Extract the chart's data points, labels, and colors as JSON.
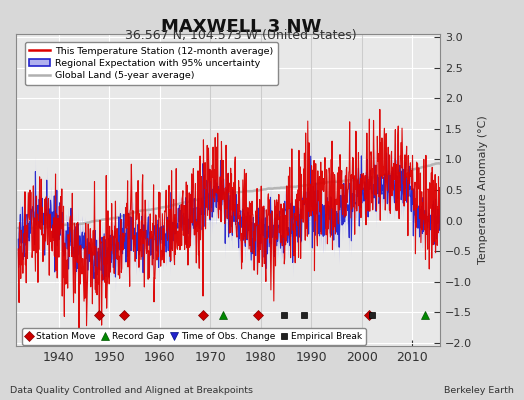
{
  "title": "MAXWELL 3 NW",
  "subtitle": "36.567 N, 104.573 W (United States)",
  "ylabel": "Temperature Anomaly (°C)",
  "xlabel_bottom": "Data Quality Controlled and Aligned at Breakpoints",
  "xlabel_right": "Berkeley Earth",
  "ylim": [
    -2.05,
    3.05
  ],
  "xlim": [
    1931.5,
    2015.5
  ],
  "yticks": [
    -2,
    -1.5,
    -1,
    -0.5,
    0,
    0.5,
    1,
    1.5,
    2,
    2.5,
    3
  ],
  "xticks": [
    1940,
    1950,
    1960,
    1970,
    1980,
    1990,
    2000,
    2010
  ],
  "bg_color": "#d8d8d8",
  "plot_bg_color": "#e8e8e8",
  "grid_color": "#ffffff",
  "station_color": "#dd0000",
  "regional_color": "#2222cc",
  "regional_fill_color": "#b0b0ee",
  "global_color": "#b0b0b0",
  "marker_station_move_color": "#cc0000",
  "marker_record_gap_color": "#008800",
  "marker_obs_change_color": "#2222cc",
  "marker_empirical_color": "#222222",
  "station_moves": [
    1948.0,
    1953.0,
    1968.5,
    1979.5,
    2001.5
  ],
  "record_gaps": [
    1972.5,
    2012.5
  ],
  "obs_changes": [],
  "empirical_breaks": [
    1984.5,
    1988.5,
    2002.0
  ],
  "vlines": [
    1970,
    1980,
    1990,
    2000
  ]
}
